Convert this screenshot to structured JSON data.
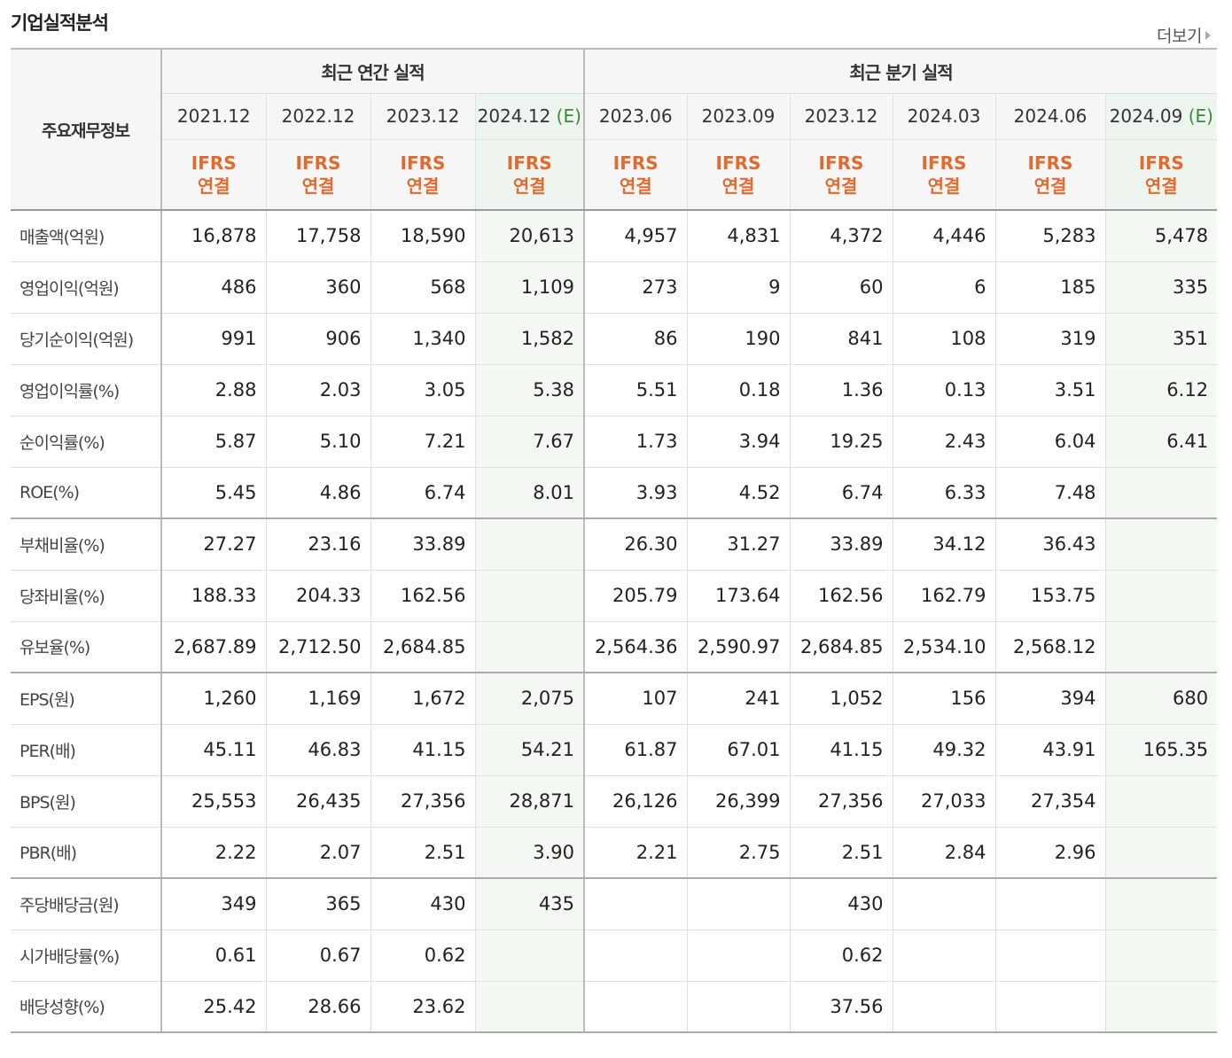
{
  "header": {
    "title": "기업실적분석",
    "more_label": "더보기"
  },
  "table": {
    "label_header": "주요재무정보",
    "annual_group": "최근 연간 실적",
    "quarter_group": "최근 분기 실적",
    "basis_line1": "IFRS",
    "basis_line2": "연결",
    "estimate_mark": "(E)",
    "periods": [
      {
        "date": "2021.12",
        "est": false
      },
      {
        "date": "2022.12",
        "est": false
      },
      {
        "date": "2023.12",
        "est": false
      },
      {
        "date": "2024.12",
        "est": true
      },
      {
        "date": "2023.06",
        "est": false
      },
      {
        "date": "2023.09",
        "est": false
      },
      {
        "date": "2023.12",
        "est": false
      },
      {
        "date": "2024.03",
        "est": false
      },
      {
        "date": "2024.06",
        "est": false
      },
      {
        "date": "2024.09",
        "est": true
      }
    ],
    "rows": [
      {
        "label": "매출액(억원)",
        "values": [
          "16,878",
          "17,758",
          "18,590",
          "20,613",
          "4,957",
          "4,831",
          "4,372",
          "4,446",
          "5,283",
          "5,478"
        ]
      },
      {
        "label": "영업이익(억원)",
        "values": [
          "486",
          "360",
          "568",
          "1,109",
          "273",
          "9",
          "60",
          "6",
          "185",
          "335"
        ]
      },
      {
        "label": "당기순이익(억원)",
        "values": [
          "991",
          "906",
          "1,340",
          "1,582",
          "86",
          "190",
          "841",
          "108",
          "319",
          "351"
        ]
      },
      {
        "label": "영업이익률(%)",
        "values": [
          "2.88",
          "2.03",
          "3.05",
          "5.38",
          "5.51",
          "0.18",
          "1.36",
          "0.13",
          "3.51",
          "6.12"
        ]
      },
      {
        "label": "순이익률(%)",
        "values": [
          "5.87",
          "5.10",
          "7.21",
          "7.67",
          "1.73",
          "3.94",
          "19.25",
          "2.43",
          "6.04",
          "6.41"
        ]
      },
      {
        "label": "ROE(%)",
        "values": [
          "5.45",
          "4.86",
          "6.74",
          "8.01",
          "3.93",
          "4.52",
          "6.74",
          "6.33",
          "7.48",
          ""
        ]
      },
      {
        "label": "부채비율(%)",
        "values": [
          "27.27",
          "23.16",
          "33.89",
          "",
          "26.30",
          "31.27",
          "33.89",
          "34.12",
          "36.43",
          ""
        ]
      },
      {
        "label": "당좌비율(%)",
        "values": [
          "188.33",
          "204.33",
          "162.56",
          "",
          "205.79",
          "173.64",
          "162.56",
          "162.79",
          "153.75",
          ""
        ]
      },
      {
        "label": "유보율(%)",
        "values": [
          "2,687.89",
          "2,712.50",
          "2,684.85",
          "",
          "2,564.36",
          "2,590.97",
          "2,684.85",
          "2,534.10",
          "2,568.12",
          ""
        ]
      },
      {
        "label": "EPS(원)",
        "values": [
          "1,260",
          "1,169",
          "1,672",
          "2,075",
          "107",
          "241",
          "1,052",
          "156",
          "394",
          "680"
        ]
      },
      {
        "label": "PER(배)",
        "values": [
          "45.11",
          "46.83",
          "41.15",
          "54.21",
          "61.87",
          "67.01",
          "41.15",
          "49.32",
          "43.91",
          "165.35"
        ]
      },
      {
        "label": "BPS(원)",
        "values": [
          "25,553",
          "26,435",
          "27,356",
          "28,871",
          "26,126",
          "26,399",
          "27,356",
          "27,033",
          "27,354",
          ""
        ]
      },
      {
        "label": "PBR(배)",
        "values": [
          "2.22",
          "2.07",
          "2.51",
          "3.90",
          "2.21",
          "2.75",
          "2.51",
          "2.84",
          "2.96",
          ""
        ]
      },
      {
        "label": "주당배당금(원)",
        "values": [
          "349",
          "365",
          "430",
          "435",
          "",
          "",
          "430",
          "",
          "",
          ""
        ]
      },
      {
        "label": "시가배당률(%)",
        "values": [
          "0.61",
          "0.67",
          "0.62",
          "",
          "",
          "",
          "0.62",
          "",
          "",
          ""
        ]
      },
      {
        "label": "배당성향(%)",
        "values": [
          "25.42",
          "28.66",
          "23.62",
          "",
          "",
          "",
          "37.56",
          "",
          "",
          ""
        ]
      }
    ],
    "group_end_rows": [
      5,
      8,
      12,
      15
    ]
  },
  "colors": {
    "ifrs_text": "#e36a2e",
    "estimate_text": "#3a8a3a",
    "estimate_bg": "#f3f8f3",
    "header_bg": "#f6f6f6"
  }
}
